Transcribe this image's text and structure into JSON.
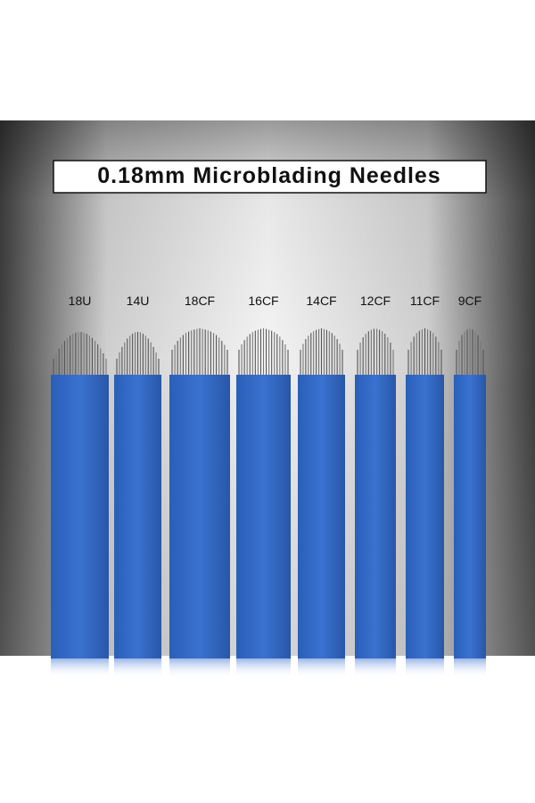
{
  "title": "0.18mm Microblading Needles",
  "blades": [
    {
      "label": "18U"
    },
    {
      "label": "14U"
    },
    {
      "label": "18CF"
    },
    {
      "label": "16CF"
    },
    {
      "label": "14CF"
    },
    {
      "label": "12CF"
    },
    {
      "label": "11CF"
    },
    {
      "label": "9CF"
    }
  ]
}
